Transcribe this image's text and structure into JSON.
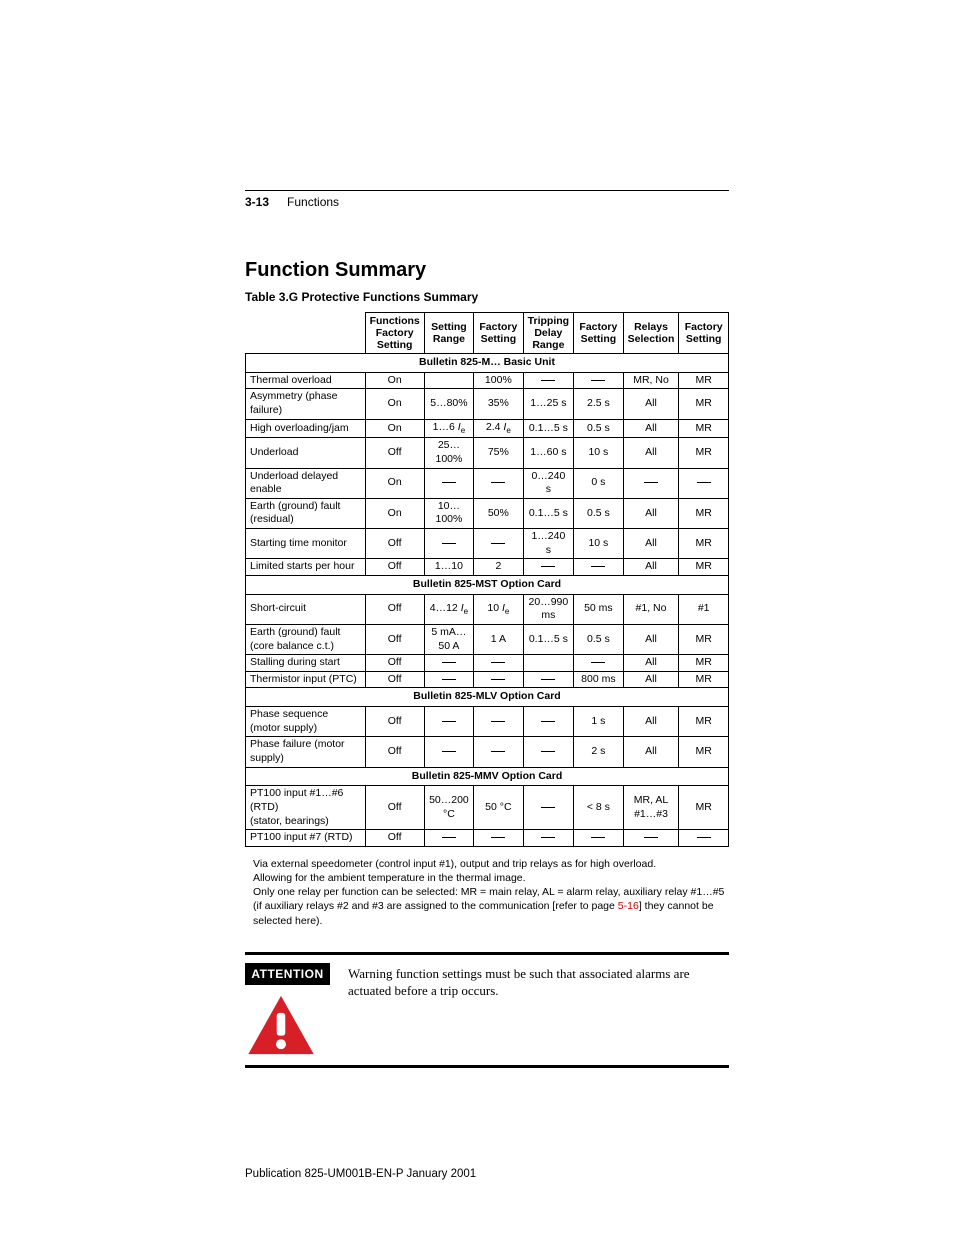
{
  "page": {
    "number": "3-13",
    "chapter": "Functions",
    "section_title": "Function Summary",
    "table_caption": "Table 3.G Protective Functions Summary",
    "footer": "Publication 825-UM001B-EN-P  January 2001"
  },
  "colors": {
    "text": "#000000",
    "background": "#ffffff",
    "link": "#cc0000",
    "attn_triangle": "#d61f26",
    "attn_exclaim": "#ffffff",
    "attn_label_bg": "#000000",
    "attn_label_fg": "#ffffff",
    "rule": "#000000"
  },
  "typography": {
    "body_font": "Arial, Helvetica, sans-serif",
    "serif_font": "Times New Roman, Times, serif",
    "h1_size_pt": 15,
    "caption_size_pt": 9,
    "table_size_pt": 8,
    "notes_size_pt": 8,
    "attn_text_size_pt": 10,
    "footer_size_pt": 9
  },
  "table": {
    "headers": [
      "",
      "Functions Factory Setting",
      "Setting Range",
      "Factory Setting",
      "Tripping Delay Range",
      "Factory Setting",
      "Relays Selection",
      "Factory Setting"
    ],
    "sections": [
      {
        "title": "Bulletin 825-M… Basic Unit",
        "rows": [
          {
            "label": "Thermal overload",
            "c": [
              "On",
              "",
              "100%",
              "—",
              "—",
              "MR, No",
              "MR"
            ]
          },
          {
            "label": "Asymmetry (phase failure)",
            "c": [
              "On",
              "5…80%",
              "35%",
              "1…25 s",
              "2.5 s",
              "All",
              "MR"
            ]
          },
          {
            "label": "High overloading/jam",
            "c": [
              "On",
              "1…6 <i>I</i><sub>e</sub>",
              "2.4 <i>I</i><sub>e</sub>",
              "0.1…5 s",
              "0.5 s",
              "All",
              "MR"
            ]
          },
          {
            "label": "Underload",
            "c": [
              "Off",
              "25…100%",
              "75%",
              "1…60 s",
              "10 s",
              "All",
              "MR"
            ]
          },
          {
            "label": "Underload delayed enable",
            "c": [
              "On",
              "—",
              "—",
              "0…240 s",
              "0 s",
              "—",
              "—"
            ]
          },
          {
            "label": "Earth (ground) fault (residual)",
            "c": [
              "On",
              "10…100%",
              "50%",
              "0.1…5 s",
              "0.5 s",
              "All",
              "MR"
            ]
          },
          {
            "label": "Starting time monitor",
            "c": [
              "Off",
              "—",
              "—",
              "1…240 s",
              "10 s",
              "All",
              "MR"
            ]
          },
          {
            "label": "Limited starts per hour",
            "c": [
              "Off",
              "1…10",
              "2",
              "—",
              "—",
              "All",
              "MR"
            ]
          }
        ]
      },
      {
        "title": "Bulletin 825-MST Option Card",
        "rows": [
          {
            "label": "Short-circuit",
            "c": [
              "Off",
              "4…12 <i>I</i><sub>e</sub>",
              "10 <i>I</i><sub>e</sub>",
              "20…990 ms",
              "50 ms",
              "#1, No",
              "#1"
            ]
          },
          {
            "label": "Earth (ground) fault\n(core balance c.t.)",
            "c": [
              "Off",
              "5 mA…50 A",
              "1 A",
              "0.1…5 s",
              "0.5 s",
              "All",
              "MR"
            ]
          },
          {
            "label": "Stalling during start",
            "c": [
              "Off",
              "—",
              "—",
              "",
              "—",
              "All",
              "MR"
            ]
          },
          {
            "label": "Thermistor input (PTC)",
            "c": [
              "Off",
              "—",
              "—",
              "—",
              "800 ms",
              "All",
              "MR"
            ]
          }
        ]
      },
      {
        "title": "Bulletin 825-MLV Option Card",
        "rows": [
          {
            "label": "Phase sequence (motor supply)",
            "c": [
              "Off",
              "—",
              "—",
              "—",
              "1 s",
              "All",
              "MR"
            ]
          },
          {
            "label": "Phase failure (motor supply)",
            "c": [
              "Off",
              "—",
              "—",
              "—",
              "2 s",
              "All",
              "MR"
            ]
          }
        ]
      },
      {
        "title": "Bulletin 825-MMV Option Card",
        "rows": [
          {
            "label": "PT100 input #1…#6 (RTD)\n(stator, bearings)",
            "c": [
              "Off",
              "50…200 °C",
              "50 °C",
              "—",
              "< 8 s",
              "MR, AL\n#1…#3",
              "MR"
            ]
          },
          {
            "label": "PT100 input #7 (RTD)",
            "c": [
              "Off",
              "—",
              "—",
              "—",
              "—",
              "—",
              "—"
            ]
          }
        ]
      }
    ]
  },
  "notes": {
    "line1": "Via external speedometer (control input #1), output and trip relays as for high overload.",
    "line2": "Allowing for the ambient temperature in the thermal image.",
    "line3_a": "Only one relay per function can be selected: MR = main relay, AL = alarm relay, auxiliary relay #1…#5 (if auxiliary relays #2 and #3 are assigned to the communication [refer to page ",
    "line3_link": "5-16",
    "line3_b": "] they cannot be selected here)."
  },
  "attention": {
    "label": "ATTENTION",
    "text": "Warning function settings must be such that associated alarms are actuated before a trip occurs."
  }
}
